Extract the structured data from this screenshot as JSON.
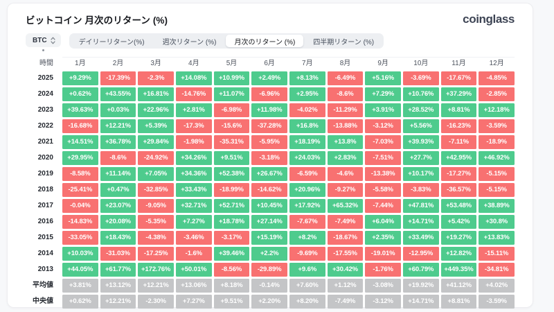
{
  "header": {
    "title": "ビットコイン 月次のリターン (%)",
    "logo": "coinglass"
  },
  "controls": {
    "symbol": "BTC",
    "tabs": [
      {
        "label": "デイリーリターン(%)",
        "active": false
      },
      {
        "label": "週次リターン (%)",
        "active": false
      },
      {
        "label": "月次のリターン (%)",
        "active": true
      },
      {
        "label": "四半期リターン (%)",
        "active": false
      }
    ]
  },
  "colors": {
    "positive": "#4ECB8D",
    "negative": "#F87171",
    "neutral": "#C4C5C7",
    "page_background": "#f7f8fa",
    "card_background": "#ffffff"
  },
  "chart_data": {
    "type": "heatmap",
    "title": "ビットコイン 月次のリターン (%)",
    "corner_label": "時間",
    "columns": [
      "1月",
      "2月",
      "3月",
      "4月",
      "5月",
      "6月",
      "7月",
      "8月",
      "9月",
      "10月",
      "11月",
      "12月"
    ],
    "rows": [
      {
        "label": "2025",
        "kind": "year",
        "values": [
          "+9.29%",
          "-17.39%",
          "-2.3%",
          "+14.08%",
          "+10.99%",
          "+2.49%",
          "+8.13%",
          "-6.49%",
          "+5.16%",
          "-3.69%",
          "-17.67%",
          "-4.85%"
        ]
      },
      {
        "label": "2024",
        "kind": "year",
        "values": [
          "+0.62%",
          "+43.55%",
          "+16.81%",
          "-14.76%",
          "+11.07%",
          "-6.96%",
          "+2.95%",
          "-8.6%",
          "+7.29%",
          "+10.76%",
          "+37.29%",
          "-2.85%"
        ]
      },
      {
        "label": "2023",
        "kind": "year",
        "values": [
          "+39.63%",
          "+0.03%",
          "+22.96%",
          "+2.81%",
          "-6.98%",
          "+11.98%",
          "-4.02%",
          "-11.29%",
          "+3.91%",
          "+28.52%",
          "+8.81%",
          "+12.18%"
        ]
      },
      {
        "label": "2022",
        "kind": "year",
        "values": [
          "-16.68%",
          "+12.21%",
          "+5.39%",
          "-17.3%",
          "-15.6%",
          "-37.28%",
          "+16.8%",
          "-13.88%",
          "-3.12%",
          "+5.56%",
          "-16.23%",
          "-3.59%"
        ]
      },
      {
        "label": "2021",
        "kind": "year",
        "values": [
          "+14.51%",
          "+36.78%",
          "+29.84%",
          "-1.98%",
          "-35.31%",
          "-5.95%",
          "+18.19%",
          "+13.8%",
          "-7.03%",
          "+39.93%",
          "-7.11%",
          "-18.9%"
        ]
      },
      {
        "label": "2020",
        "kind": "year",
        "values": [
          "+29.95%",
          "-8.6%",
          "-24.92%",
          "+34.26%",
          "+9.51%",
          "-3.18%",
          "+24.03%",
          "+2.83%",
          "-7.51%",
          "+27.7%",
          "+42.95%",
          "+46.92%"
        ]
      },
      {
        "label": "2019",
        "kind": "year",
        "values": [
          "-8.58%",
          "+11.14%",
          "+7.05%",
          "+34.36%",
          "+52.38%",
          "+26.67%",
          "-6.59%",
          "-4.6%",
          "-13.38%",
          "+10.17%",
          "-17.27%",
          "-5.15%"
        ]
      },
      {
        "label": "2018",
        "kind": "year",
        "values": [
          "-25.41%",
          "+0.47%",
          "-32.85%",
          "+33.43%",
          "-18.99%",
          "-14.62%",
          "+20.96%",
          "-9.27%",
          "-5.58%",
          "-3.83%",
          "-36.57%",
          "-5.15%"
        ]
      },
      {
        "label": "2017",
        "kind": "year",
        "values": [
          "-0.04%",
          "+23.07%",
          "-9.05%",
          "+32.71%",
          "+52.71%",
          "+10.45%",
          "+17.92%",
          "+65.32%",
          "-7.44%",
          "+47.81%",
          "+53.48%",
          "+38.89%"
        ]
      },
      {
        "label": "2016",
        "kind": "year",
        "values": [
          "-14.83%",
          "+20.08%",
          "-5.35%",
          "+7.27%",
          "+18.78%",
          "+27.14%",
          "-7.67%",
          "-7.49%",
          "+6.04%",
          "+14.71%",
          "+5.42%",
          "+30.8%"
        ]
      },
      {
        "label": "2015",
        "kind": "year",
        "values": [
          "-33.05%",
          "+18.43%",
          "-4.38%",
          "-3.46%",
          "-3.17%",
          "+15.19%",
          "+8.2%",
          "-18.67%",
          "+2.35%",
          "+33.49%",
          "+19.27%",
          "+13.83%"
        ]
      },
      {
        "label": "2014",
        "kind": "year",
        "values": [
          "+10.03%",
          "-31.03%",
          "-17.25%",
          "-1.6%",
          "+39.46%",
          "+2.2%",
          "-9.69%",
          "-17.55%",
          "-19.01%",
          "-12.95%",
          "+12.82%",
          "-15.11%"
        ]
      },
      {
        "label": "2013",
        "kind": "year",
        "values": [
          "+44.05%",
          "+61.77%",
          "+172.76%",
          "+50.01%",
          "-8.56%",
          "-29.89%",
          "+9.6%",
          "+30.42%",
          "-1.76%",
          "+60.79%",
          "+449.35%",
          "-34.81%"
        ]
      },
      {
        "label": "平均値",
        "kind": "stat",
        "values": [
          "+3.81%",
          "+13.12%",
          "+12.21%",
          "+13.06%",
          "+8.18%",
          "-0.14%",
          "+7.60%",
          "+1.12%",
          "-3.08%",
          "+19.92%",
          "+41.12%",
          "+4.02%"
        ]
      },
      {
        "label": "中央値",
        "kind": "stat",
        "values": [
          "+0.62%",
          "+12.21%",
          "-2.30%",
          "+7.27%",
          "+9.51%",
          "+2.20%",
          "+8.20%",
          "-7.49%",
          "-3.12%",
          "+14.71%",
          "+8.81%",
          "-3.59%"
        ]
      }
    ]
  }
}
